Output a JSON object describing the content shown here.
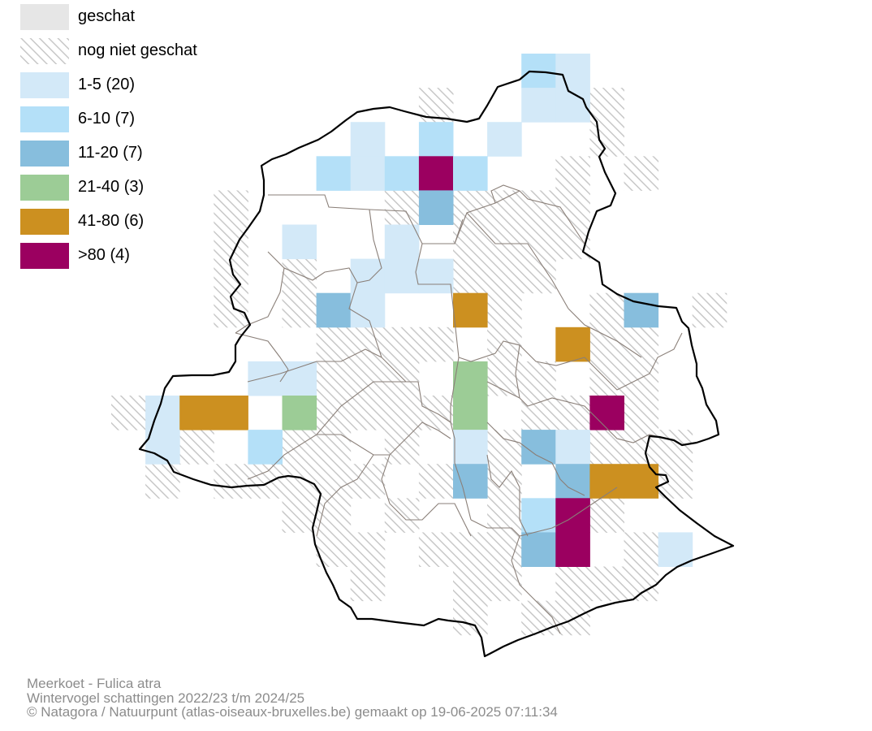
{
  "colors": {
    "surveyed": "#e6e6e6",
    "hatch": "#c8c8c8",
    "c1": "#d3e9f8",
    "c2": "#b4e0f8",
    "c3": "#87bedd",
    "c4": "#9ccc96",
    "c5": "#cc9020",
    "c6": "#9b0060",
    "outline": "#000000",
    "districts": "#8a7f78"
  },
  "legend": [
    {
      "label": "geschat",
      "class": "surveyed"
    },
    {
      "label": "nog niet geschat",
      "class": "hatch"
    },
    {
      "label": "1-5 (20)",
      "class": "c1"
    },
    {
      "label": "6-10 (7)",
      "class": "c2"
    },
    {
      "label": "11-20 (7)",
      "class": "c3"
    },
    {
      "label": "21-40 (3)",
      "class": "c4"
    },
    {
      "label": "41-80 (6)",
      "class": "c5"
    },
    {
      "label": ">80 (4)",
      "class": "c6"
    }
  ],
  "footer": {
    "species": "Meerkoet - Fulica atra",
    "survey": "Wintervogel schattingen 2022/23 t/m 2024/25",
    "credit": "© Natagora / Natuurpunt (atlas-oiseaux-bruxelles.be) gemaakt op 19-06-2025 07:11:34"
  }
}
